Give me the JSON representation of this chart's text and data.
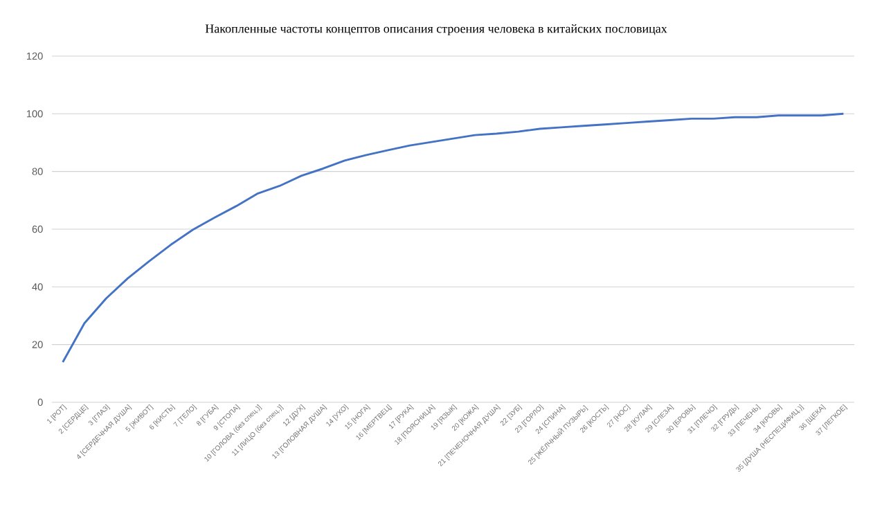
{
  "chart_data": {
    "type": "line",
    "title": "Накопленные частоты концептов описания строения человека в китайских пословицах",
    "categories": [
      "1 [РОТ]",
      "2 [СЕРДЦЕ]",
      "3 [ГЛАЗ]",
      "4 [СЕРДЕЧНАЯ ДУША]",
      "5 [ЖИВОТ]",
      "6 [КИСТЬ]",
      "7 [ТЕЛО]",
      "8 [ГУБА]",
      "9 [СТОПА]",
      "10 [ГОЛОВА (без спец.)]",
      "11 [ЛИЦО (без спец.)]",
      "12 [ДУХ]",
      "13 [ГОЛОВНАЯ ДУША]",
      "14 [УХО]",
      "15 [НОГА]",
      "16 [МЕРТВЕЦ]",
      "17 [РУКА]",
      "18 [ПОЯСНИЦА]",
      "19 [ЯЗЫК]",
      "20 [КОЖА]",
      "21 [ПЕЧЕНОЧНАЯ ДУША]",
      "22 [ЗУБ]",
      "23 [ГОРЛО]",
      "24 [СПИНА]",
      "25 [ЖЁЛЧНЫЙ ПУЗЫРЬ]",
      "26 [КОСТЬ]",
      "27 [НОС]",
      "28 [КУЛАК]",
      "29 [СЛЕЗА]",
      "30 [БРОВЬ]",
      "31 [ПЛЕЧО]",
      "32 [ГРУДЬ]",
      "33 [ПЕЧЕНЬ]",
      "34 [КРОВЬ]",
      "35 [ДУША (НЕСПЕЦИФИЦ.)]",
      "36 [ЩЕКА]",
      "37 [ЛЕГКОЕ]"
    ],
    "series": [
      {
        "color": "#4472c4",
        "values": [
          13.9,
          27.4,
          36,
          43,
          49,
          54.7,
          59.8,
          64,
          68,
          72.4,
          75,
          78.5,
          81,
          83.8,
          85.7,
          87.4,
          89,
          90.2,
          91.4,
          92.6,
          93.1,
          93.8,
          94.8,
          95.3,
          95.8,
          96.3,
          96.8,
          97.3,
          97.8,
          98.3,
          98.3,
          98.8,
          98.8,
          99.4,
          99.4,
          99.4,
          100
        ]
      }
    ],
    "ylim": [
      0,
      120
    ],
    "yticks": [
      0,
      20,
      40,
      60,
      80,
      100,
      120
    ],
    "grid": "y",
    "marker": "none",
    "line_style": "solid",
    "legend": false
  }
}
